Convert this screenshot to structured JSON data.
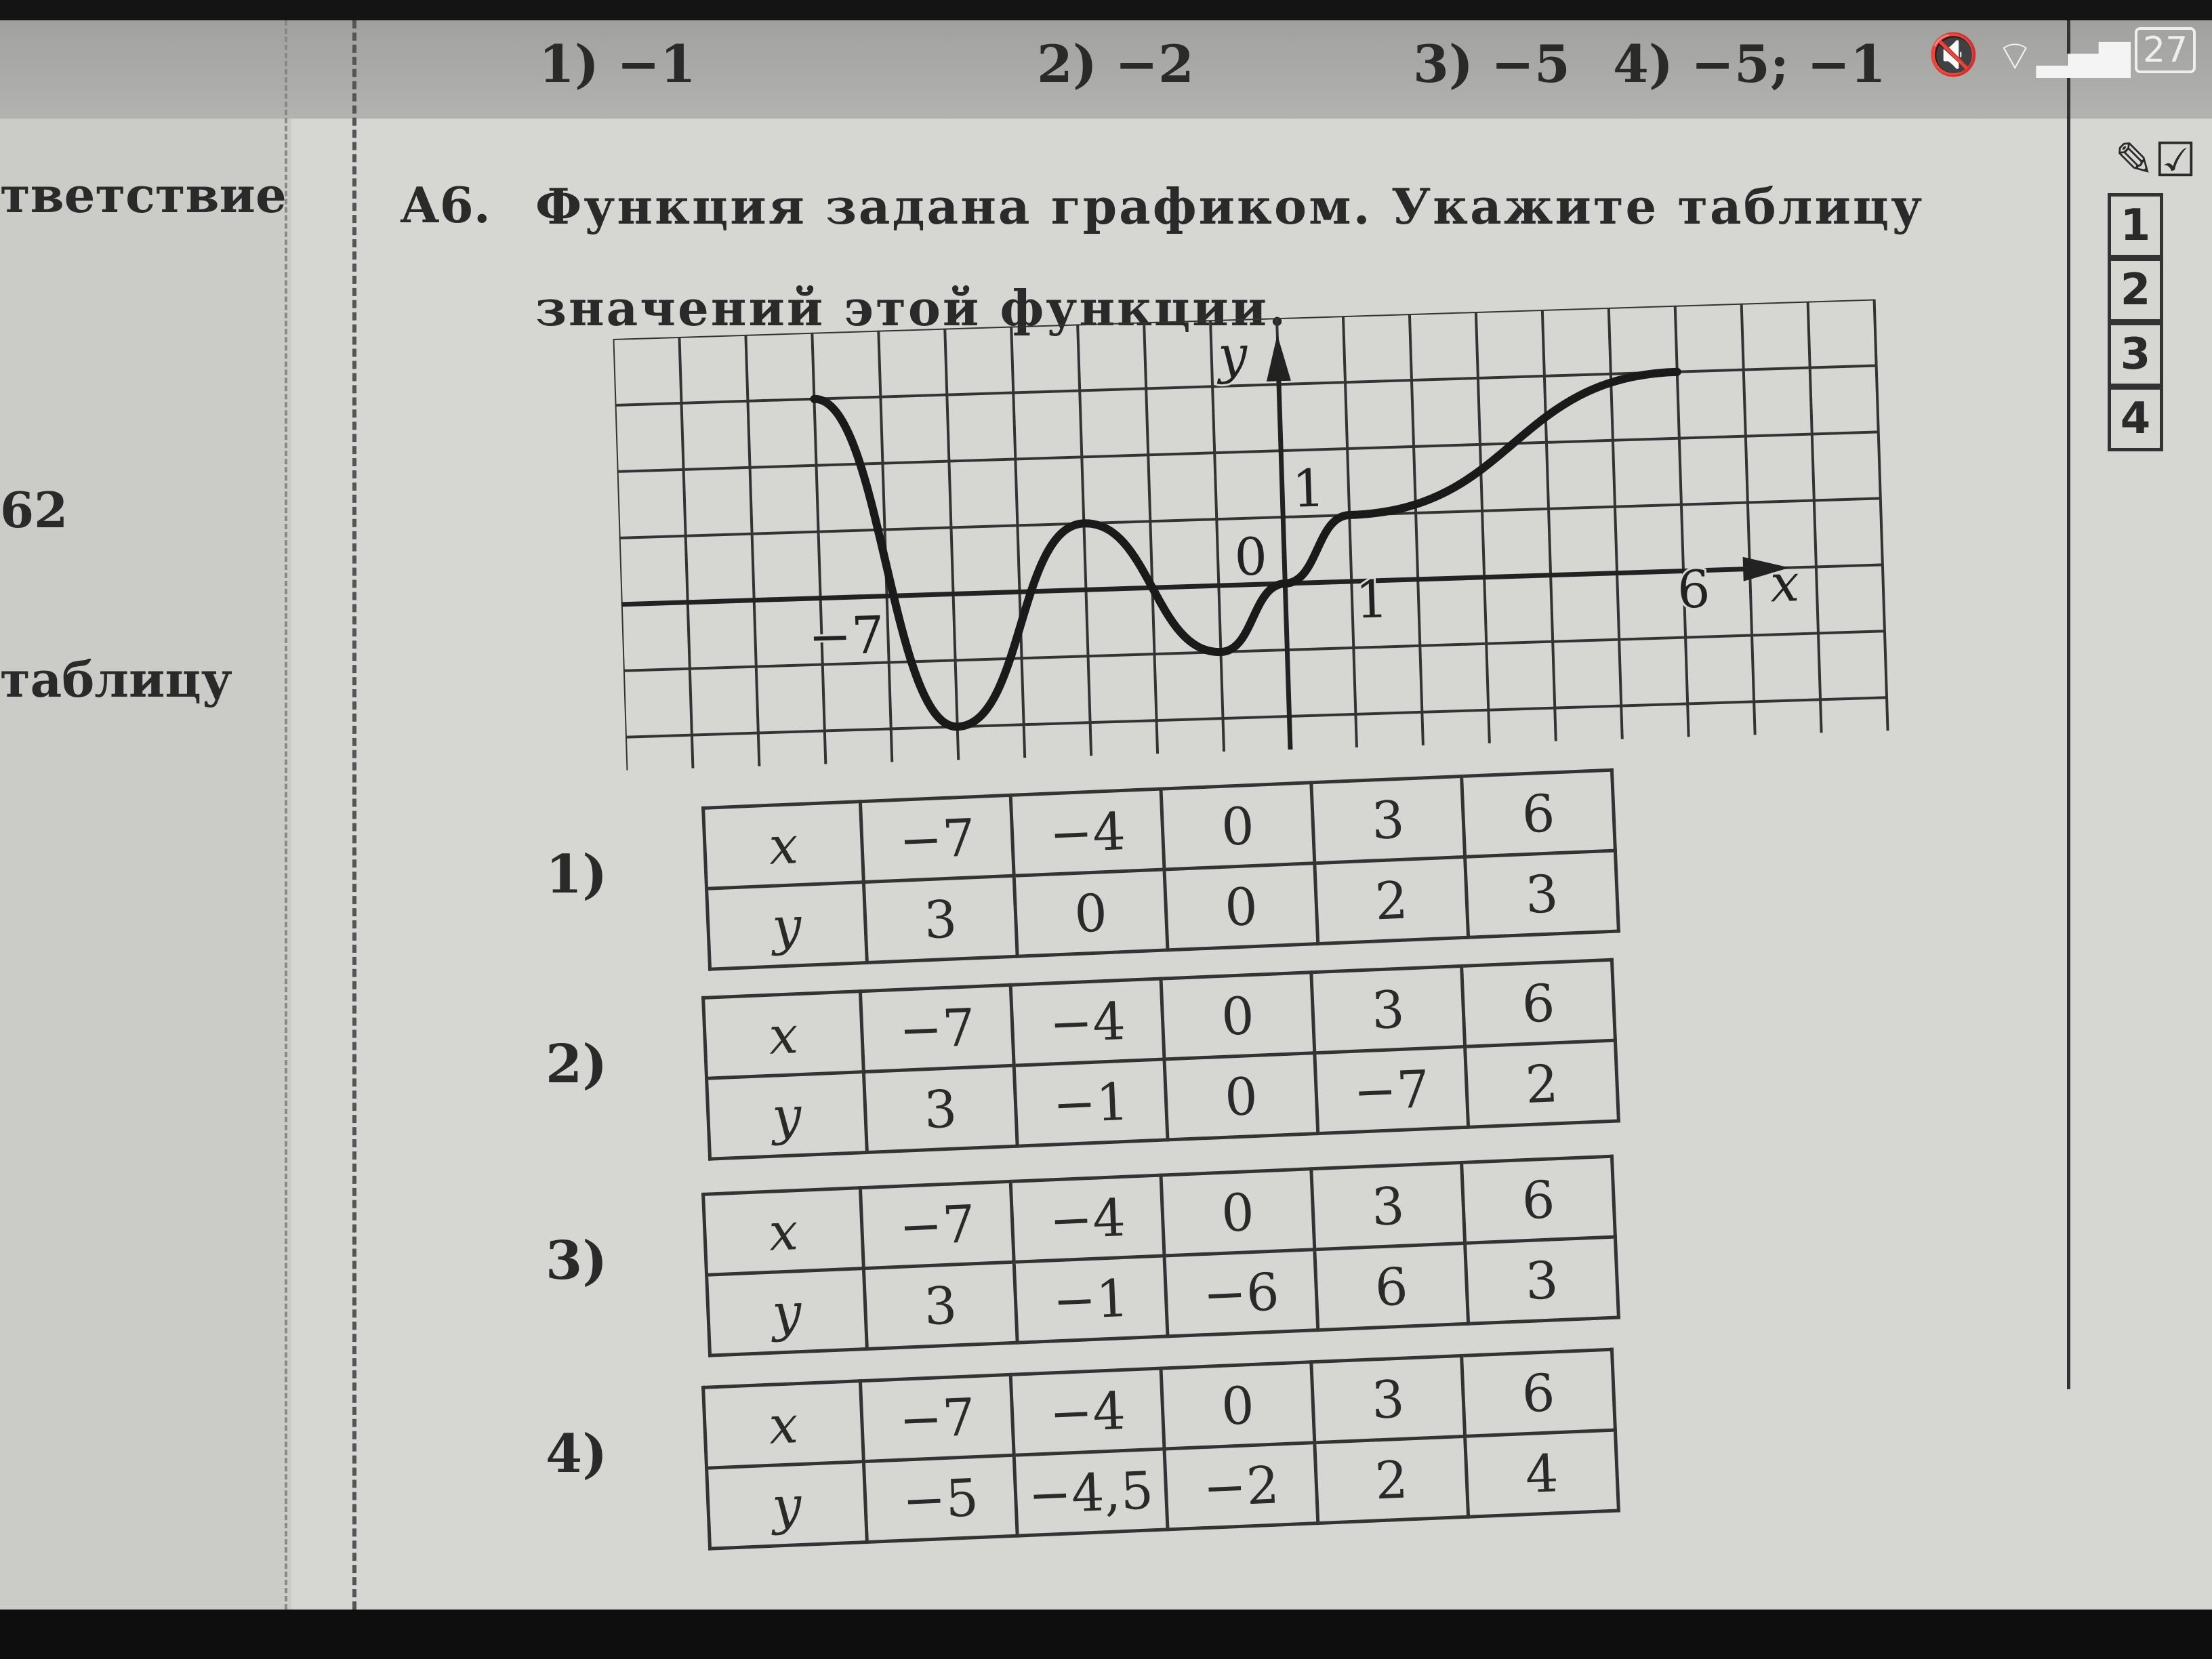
{
  "prev_answers": [
    "1) −1",
    "2) −2",
    "3) −5",
    "4) −5; −1"
  ],
  "status_bar": {
    "battery": "27",
    "mute_icon": "mute-icon",
    "wifi_icon": "wifi-icon",
    "signal_icon": "signal-icon"
  },
  "left_page": {
    "fragments": [
      "тветствие",
      "62",
      "таблицу"
    ]
  },
  "question": {
    "number": "А6.",
    "text": "Функция задана графиком. Укажите таблицу значений этой функции."
  },
  "graph": {
    "axis_x": "x",
    "axis_y": "y",
    "origin": "0",
    "tick_labels": {
      "x_neg7": "−7",
      "x_1": "1",
      "y_1": "1",
      "x_6": "6"
    },
    "x_range": [
      -10,
      9
    ],
    "y_range": [
      -2.5,
      4
    ],
    "curve": [
      [
        -7,
        3
      ],
      [
        -5,
        -2
      ],
      [
        -3,
        1
      ],
      [
        -1,
        -1
      ],
      [
        0,
        0
      ],
      [
        1,
        1
      ],
      [
        6,
        3
      ]
    ]
  },
  "options": [
    {
      "label": "1)",
      "x_header": "x",
      "y_header": "y",
      "x": [
        "−7",
        "−4",
        "0",
        "3",
        "6"
      ],
      "y": [
        "3",
        "0",
        "0",
        "2",
        "3"
      ]
    },
    {
      "label": "2)",
      "x_header": "x",
      "y_header": "y",
      "x": [
        "−7",
        "−4",
        "0",
        "3",
        "6"
      ],
      "y": [
        "3",
        "−1",
        "0",
        "−7",
        "2"
      ]
    },
    {
      "label": "3)",
      "x_header": "x",
      "y_header": "y",
      "x": [
        "−7",
        "−4",
        "0",
        "3",
        "6"
      ],
      "y": [
        "3",
        "−1",
        "−6",
        "6",
        "3"
      ]
    },
    {
      "label": "4)",
      "x_header": "x",
      "y_header": "y",
      "x": [
        "−7",
        "−4",
        "0",
        "3",
        "6"
      ],
      "y": [
        "−5",
        "−4,5",
        "−2",
        "2",
        "4"
      ]
    }
  ],
  "answer_boxes": [
    "1",
    "2",
    "3",
    "4"
  ]
}
